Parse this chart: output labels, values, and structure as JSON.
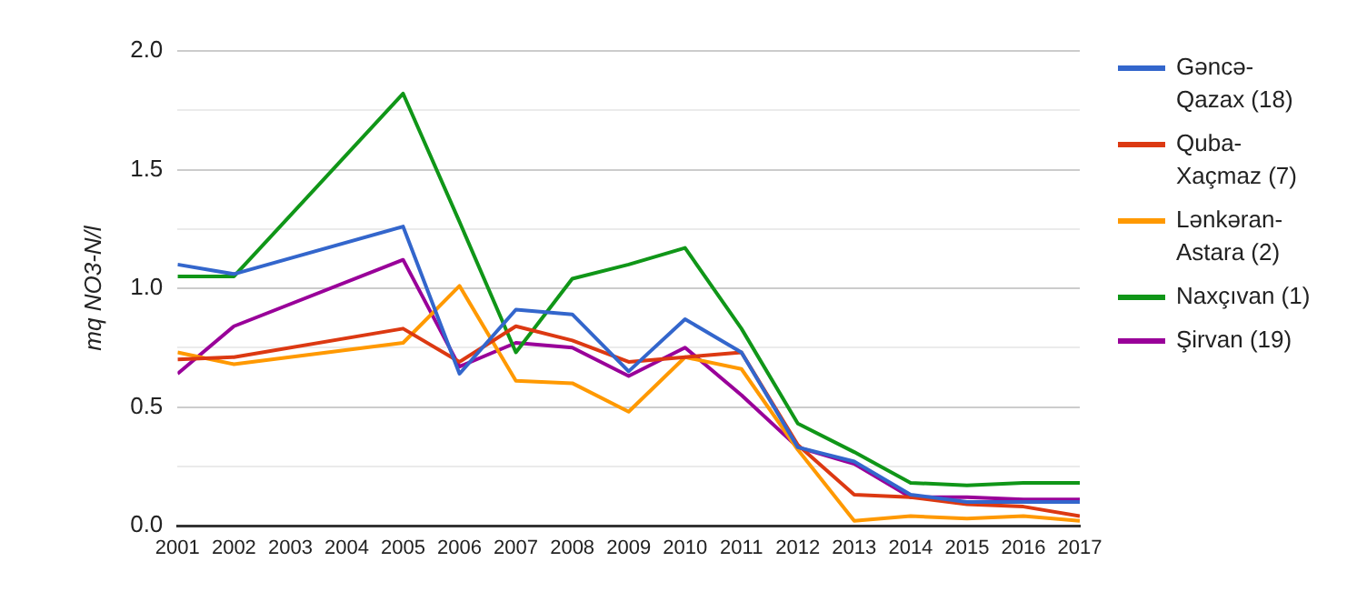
{
  "chart_data": {
    "type": "line",
    "ylabel": "mq NO3-N/l",
    "xlim": [
      2001,
      2017
    ],
    "xticks": [
      2001,
      2002,
      2003,
      2004,
      2005,
      2006,
      2007,
      2008,
      2009,
      2010,
      2011,
      2012,
      2013,
      2014,
      2015,
      2016,
      2017
    ],
    "ylim": [
      0,
      2
    ],
    "yticks": [
      {
        "value": 0,
        "label": "0.0"
      },
      {
        "value": 0.25,
        "label": null
      },
      {
        "value": 0.5,
        "label": "0.5"
      },
      {
        "value": 0.75,
        "label": null
      },
      {
        "value": 1,
        "label": "1.0"
      },
      {
        "value": 1.25,
        "label": null
      },
      {
        "value": 1.5,
        "label": "1.5"
      },
      {
        "value": 1.75,
        "label": null
      },
      {
        "value": 2,
        "label": "2.0"
      }
    ],
    "x": [
      2001,
      2002,
      2005,
      2006,
      2007,
      2008,
      2009,
      2010,
      2011,
      2012,
      2013,
      2014,
      2015,
      2016,
      2017
    ],
    "grid": "y",
    "legend": "right",
    "marker": "none",
    "line_style": "solid",
    "series": [
      {
        "name": "Gəncə-Qazax (18)",
        "color": "#3366cc",
        "values": [
          1.1,
          1.06,
          1.26,
          0.64,
          0.91,
          0.89,
          0.65,
          0.87,
          0.73,
          0.33,
          0.27,
          0.13,
          0.1,
          0.1,
          0.1
        ]
      },
      {
        "name": "Quba-Xaçmaz (7)",
        "color": "#dc3912",
        "values": [
          0.7,
          0.71,
          0.83,
          0.69,
          0.84,
          0.78,
          0.69,
          0.71,
          0.73,
          0.34,
          0.13,
          0.12,
          0.09,
          0.08,
          0.04
        ]
      },
      {
        "name": "Lənkəran-Astara (2)",
        "color": "#ff9900",
        "values": [
          0.73,
          0.68,
          0.77,
          1.01,
          0.61,
          0.6,
          0.48,
          0.71,
          0.66,
          0.32,
          0.02,
          0.04,
          0.03,
          0.04,
          0.02
        ]
      },
      {
        "name": "Naxçıvan (1)",
        "color": "#109618",
        "values": [
          1.05,
          1.05,
          1.82,
          1.28,
          0.73,
          1.04,
          1.1,
          1.17,
          0.83,
          0.43,
          0.31,
          0.18,
          0.17,
          0.18,
          0.18
        ]
      },
      {
        "name": "Şirvan (19)",
        "color": "#990099",
        "values": [
          0.64,
          0.84,
          1.12,
          0.67,
          0.77,
          0.75,
          0.63,
          0.75,
          0.55,
          0.33,
          0.26,
          0.12,
          0.12,
          0.11,
          0.11
        ]
      }
    ]
  }
}
